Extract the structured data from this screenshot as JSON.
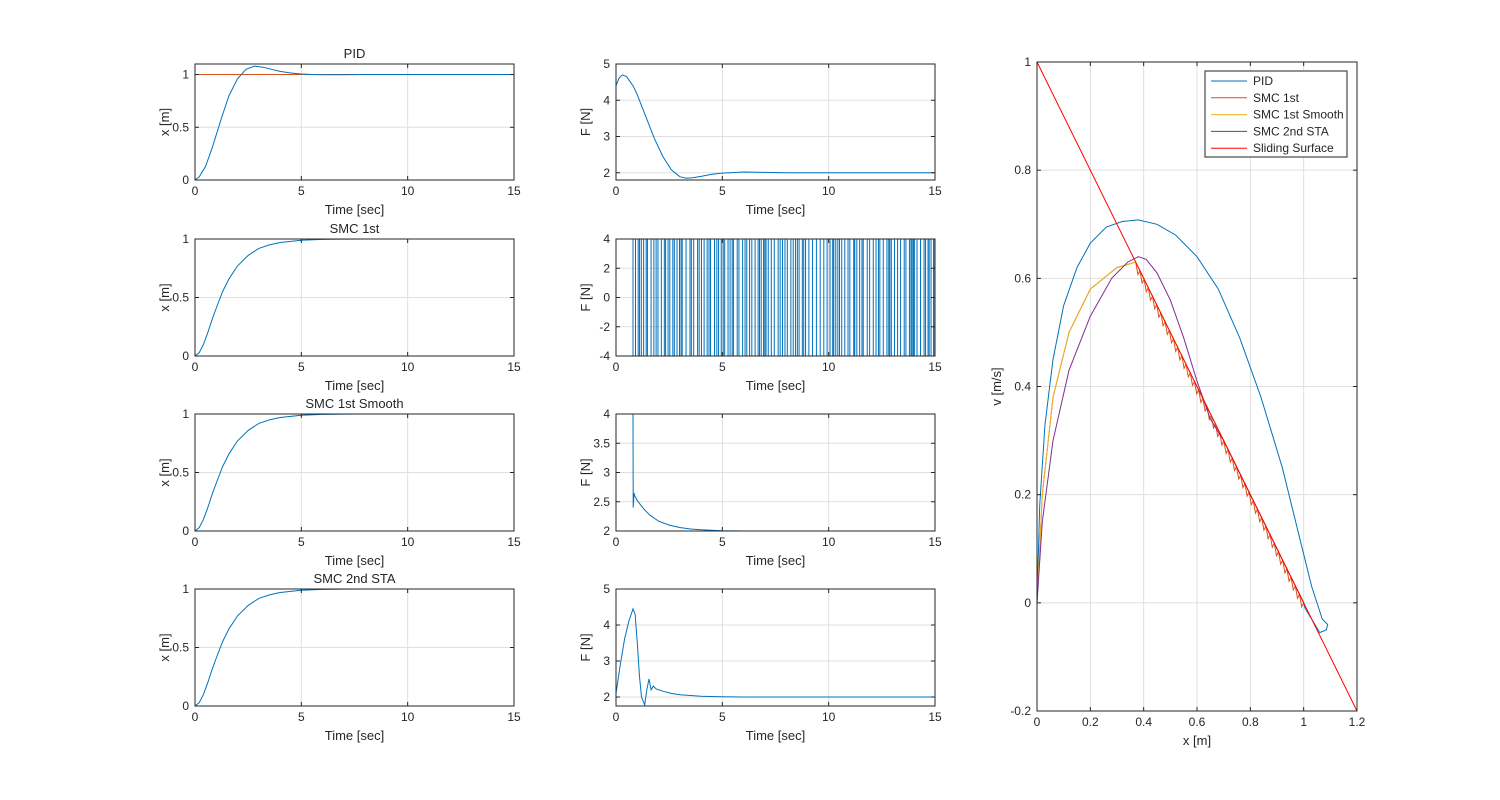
{
  "colors": {
    "blue": "#0072BD",
    "orange": "#D95319",
    "yellow": "#EDB120",
    "purple": "#7E2F8E",
    "red": "#FF0000",
    "grid": "#DFDFDF",
    "axes": "#262626"
  },
  "chart_data": [
    {
      "id": "pos_pid",
      "type": "line",
      "title": "PID",
      "xlabel": "Time [sec]",
      "ylabel": "x [m]",
      "xlim": [
        0,
        15
      ],
      "ylim": [
        0,
        1.1
      ],
      "xticks": [
        0,
        5,
        10,
        15
      ],
      "yticks": [
        0,
        0.5,
        1
      ],
      "series": [
        {
          "color_key": "orange",
          "x": [
            0,
            15
          ],
          "y": [
            1,
            1
          ]
        },
        {
          "color_key": "blue",
          "x": [
            0,
            0.2,
            0.5,
            0.8,
            1.0,
            1.3,
            1.6,
            2.0,
            2.4,
            2.8,
            3.2,
            3.6,
            4.0,
            4.5,
            5.0,
            5.5,
            6.0,
            7.0,
            8.0,
            10.0,
            12.0,
            15.0
          ],
          "y": [
            0,
            0.03,
            0.13,
            0.3,
            0.43,
            0.62,
            0.8,
            0.96,
            1.05,
            1.08,
            1.07,
            1.05,
            1.03,
            1.015,
            1.005,
            1.0,
            0.998,
            0.999,
            1.0,
            1.0,
            1.0,
            1.0
          ]
        }
      ]
    },
    {
      "id": "pos_smc1",
      "type": "line",
      "title": "SMC 1st",
      "xlabel": "Time [sec]",
      "ylabel": "x [m]",
      "xlim": [
        0,
        15
      ],
      "ylim": [
        0,
        1.0
      ],
      "xticks": [
        0,
        5,
        10,
        15
      ],
      "yticks": [
        0,
        0.5,
        1
      ],
      "series": [
        {
          "color_key": "orange",
          "x": [
            0,
            15
          ],
          "y": [
            1,
            1
          ]
        },
        {
          "color_key": "blue",
          "x": [
            0,
            0.2,
            0.4,
            0.6,
            0.8,
            1.0,
            1.3,
            1.6,
            2.0,
            2.5,
            3.0,
            3.5,
            4.0,
            5.0,
            6.0,
            7.0,
            8.0,
            10.0,
            12.0,
            15.0
          ],
          "y": [
            0,
            0.03,
            0.1,
            0.2,
            0.31,
            0.41,
            0.55,
            0.66,
            0.77,
            0.86,
            0.92,
            0.95,
            0.97,
            0.99,
            0.997,
            0.999,
            1.0,
            1.0,
            1.0,
            1.0
          ]
        }
      ]
    },
    {
      "id": "pos_smc1s",
      "type": "line",
      "title": "SMC 1st Smooth",
      "xlabel": "Time [sec]",
      "ylabel": "x [m]",
      "xlim": [
        0,
        15
      ],
      "ylim": [
        0,
        1.0
      ],
      "xticks": [
        0,
        5,
        10,
        15
      ],
      "yticks": [
        0,
        0.5,
        1
      ],
      "series": [
        {
          "color_key": "orange",
          "x": [
            0,
            15
          ],
          "y": [
            1,
            1
          ]
        },
        {
          "color_key": "blue",
          "x": [
            0,
            0.2,
            0.4,
            0.6,
            0.8,
            1.0,
            1.3,
            1.6,
            2.0,
            2.5,
            3.0,
            3.5,
            4.0,
            5.0,
            6.0,
            7.0,
            8.0,
            10.0,
            12.0,
            15.0
          ],
          "y": [
            0,
            0.03,
            0.1,
            0.2,
            0.31,
            0.41,
            0.55,
            0.66,
            0.77,
            0.86,
            0.92,
            0.95,
            0.97,
            0.99,
            0.997,
            0.999,
            1.0,
            1.0,
            1.0,
            1.0
          ]
        }
      ]
    },
    {
      "id": "pos_sta",
      "type": "line",
      "title": "SMC 2nd STA",
      "xlabel": "Time [sec]",
      "ylabel": "x [m]",
      "xlim": [
        0,
        15
      ],
      "ylim": [
        0,
        1.0
      ],
      "xticks": [
        0,
        5,
        10,
        15
      ],
      "yticks": [
        0,
        0.5,
        1
      ],
      "series": [
        {
          "color_key": "orange",
          "x": [
            0,
            15
          ],
          "y": [
            1,
            1
          ]
        },
        {
          "color_key": "blue",
          "x": [
            0,
            0.2,
            0.4,
            0.6,
            0.8,
            1.0,
            1.3,
            1.6,
            2.0,
            2.5,
            3.0,
            3.5,
            4.0,
            5.0,
            6.0,
            7.0,
            8.0,
            10.0,
            12.0,
            15.0
          ],
          "y": [
            0,
            0.03,
            0.1,
            0.2,
            0.31,
            0.41,
            0.55,
            0.66,
            0.77,
            0.86,
            0.92,
            0.95,
            0.97,
            0.99,
            0.997,
            0.999,
            1.0,
            1.0,
            1.0,
            1.0
          ]
        }
      ]
    },
    {
      "id": "force_pid",
      "type": "line",
      "title": "",
      "xlabel": "Time [sec]",
      "ylabel": "F [N]",
      "xlim": [
        0,
        15
      ],
      "ylim": [
        1.8,
        5
      ],
      "xticks": [
        0,
        5,
        10,
        15
      ],
      "yticks": [
        2,
        3,
        4,
        5
      ],
      "series": [
        {
          "color_key": "blue",
          "x": [
            0,
            0.15,
            0.3,
            0.5,
            0.8,
            1.0,
            1.4,
            1.8,
            2.2,
            2.6,
            3.0,
            3.3,
            3.6,
            4.0,
            4.5,
            5.0,
            6.0,
            7.0,
            8.0,
            10.0,
            12.0,
            15.0
          ],
          "y": [
            4.4,
            4.62,
            4.7,
            4.65,
            4.4,
            4.15,
            3.55,
            2.95,
            2.45,
            2.08,
            1.89,
            1.85,
            1.86,
            1.9,
            1.96,
            1.99,
            2.02,
            2.01,
            2.0,
            2.0,
            2.0,
            2.0
          ]
        }
      ]
    },
    {
      "id": "force_smc1",
      "type": "line",
      "title": "",
      "xlabel": "Time [sec]",
      "ylabel": "F [N]",
      "xlim": [
        0,
        15
      ],
      "ylim": [
        -4,
        4
      ],
      "xticks": [
        0,
        5,
        10,
        15
      ],
      "yticks": [
        -4,
        -2,
        0,
        2,
        4
      ],
      "switching": {
        "start": 0.8,
        "end": 15,
        "high": 4,
        "low": -4,
        "count": 120
      },
      "series": [
        {
          "color_key": "blue",
          "x": [
            0,
            0.8
          ],
          "y": [
            4,
            4
          ]
        }
      ]
    },
    {
      "id": "force_smc1s",
      "type": "line",
      "title": "",
      "xlabel": "Time [sec]",
      "ylabel": "F [N]",
      "xlim": [
        0,
        15
      ],
      "ylim": [
        2,
        4
      ],
      "xticks": [
        0,
        5,
        10,
        15
      ],
      "yticks": [
        2,
        2.5,
        3,
        3.5,
        4
      ],
      "series": [
        {
          "color_key": "blue",
          "x": [
            0,
            0.8,
            0.81,
            0.85,
            0.88,
            0.92,
            1.0,
            1.3,
            1.6,
            2.0,
            2.5,
            3.0,
            3.5,
            4.0,
            5.0,
            6.0,
            8.0,
            10.0,
            15.0
          ],
          "y": [
            4,
            4,
            2.4,
            2.65,
            2.6,
            2.58,
            2.52,
            2.38,
            2.27,
            2.17,
            2.1,
            2.06,
            2.035,
            2.02,
            2.005,
            2.0,
            2.0,
            2.0,
            2.0
          ]
        }
      ]
    },
    {
      "id": "force_sta",
      "type": "line",
      "title": "",
      "xlabel": "Time [sec]",
      "ylabel": "F [N]",
      "xlim": [
        0,
        15
      ],
      "ylim": [
        1.75,
        5
      ],
      "xticks": [
        0,
        5,
        10,
        15
      ],
      "yticks": [
        2,
        3,
        4,
        5
      ],
      "series": [
        {
          "color_key": "blue",
          "x": [
            0,
            0.2,
            0.4,
            0.6,
            0.8,
            0.9,
            1.0,
            1.1,
            1.2,
            1.35,
            1.45,
            1.55,
            1.65,
            1.75,
            1.9,
            2.2,
            2.6,
            3.0,
            4.0,
            5.0,
            6.0,
            8.0,
            10.0,
            15.0
          ],
          "y": [
            2.1,
            2.9,
            3.6,
            4.1,
            4.45,
            4.3,
            3.5,
            2.6,
            2.0,
            1.78,
            2.2,
            2.5,
            2.2,
            2.3,
            2.22,
            2.16,
            2.1,
            2.06,
            2.02,
            2.005,
            2.0,
            2.0,
            2.0,
            2.0
          ]
        }
      ]
    },
    {
      "id": "phase",
      "type": "line",
      "title": "",
      "xlabel": "x [m]",
      "ylabel": "v [m/s]",
      "xlim": [
        0,
        1.2
      ],
      "ylim": [
        -0.2,
        1.0
      ],
      "xticks": [
        0,
        0.2,
        0.4,
        0.6,
        0.8,
        1,
        1.2
      ],
      "yticks": [
        -0.2,
        0,
        0.2,
        0.4,
        0.6,
        0.8,
        1
      ],
      "legend_position": "top-right",
      "series": [
        {
          "name": "PID",
          "color_key": "blue",
          "x": [
            0,
            0.01,
            0.03,
            0.06,
            0.1,
            0.15,
            0.2,
            0.26,
            0.32,
            0.38,
            0.45,
            0.52,
            0.6,
            0.68,
            0.76,
            0.84,
            0.92,
            0.98,
            1.03,
            1.07,
            1.09,
            1.085,
            1.06,
            1.03,
            1.005,
            1.0
          ],
          "y": [
            0,
            0.18,
            0.33,
            0.45,
            0.55,
            0.62,
            0.665,
            0.695,
            0.705,
            0.708,
            0.7,
            0.68,
            0.64,
            0.58,
            0.49,
            0.38,
            0.25,
            0.13,
            0.03,
            -0.03,
            -0.04,
            -0.05,
            -0.055,
            -0.03,
            -0.01,
            0.0
          ]
        },
        {
          "name": "SMC 1st",
          "color_key": "orange",
          "sawtooth": true,
          "x": [
            0,
            0.02,
            0.06,
            0.12,
            0.2,
            0.3,
            0.37,
            1.0
          ],
          "y": [
            0,
            0.2,
            0.38,
            0.5,
            0.58,
            0.62,
            0.63,
            0.0
          ]
        },
        {
          "name": "SMC 1st Smooth",
          "color_key": "yellow",
          "x": [
            0,
            0.02,
            0.06,
            0.12,
            0.2,
            0.3,
            0.37,
            0.5,
            0.65,
            0.8,
            0.9,
            1.0
          ],
          "y": [
            0,
            0.2,
            0.38,
            0.5,
            0.58,
            0.62,
            0.63,
            0.5,
            0.35,
            0.2,
            0.1,
            0.0
          ]
        },
        {
          "name": "SMC 2nd STA",
          "color_key": "purple",
          "x": [
            0,
            0.02,
            0.06,
            0.12,
            0.2,
            0.28,
            0.34,
            0.38,
            0.41,
            0.45,
            0.5,
            0.55,
            0.6,
            0.65,
            0.7,
            0.8,
            0.9,
            1.0
          ],
          "y": [
            0,
            0.15,
            0.3,
            0.43,
            0.53,
            0.6,
            0.63,
            0.64,
            0.635,
            0.61,
            0.56,
            0.49,
            0.41,
            0.34,
            0.3,
            0.2,
            0.1,
            0.0
          ]
        },
        {
          "name": "Sliding Surface",
          "color_key": "red",
          "x": [
            0,
            1.2
          ],
          "y": [
            1.0,
            -0.2
          ]
        }
      ]
    }
  ]
}
